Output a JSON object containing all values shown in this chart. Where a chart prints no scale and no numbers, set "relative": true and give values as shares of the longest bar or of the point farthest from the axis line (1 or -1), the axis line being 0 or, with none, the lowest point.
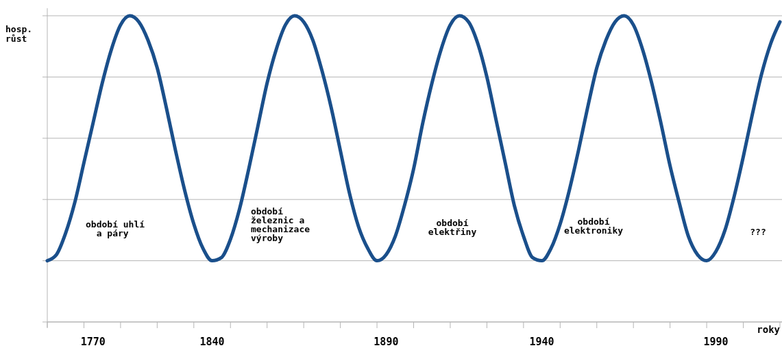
{
  "chart_data": {
    "type": "line",
    "relative": true,
    "grid": true,
    "marker": "none",
    "line_style": "solid",
    "ylabel": "hosp.\nrůst",
    "xlabel": "roky",
    "categories": [
      null,
      null,
      null,
      null,
      null,
      "1770",
      null,
      null,
      null,
      null,
      null,
      null,
      null,
      null,
      null,
      null,
      null,
      null,
      "1840",
      null,
      null,
      null,
      null,
      null,
      null,
      null,
      null,
      null,
      null,
      null,
      null,
      null,
      null,
      null,
      null,
      null,
      null,
      "1890",
      null,
      null,
      null,
      null,
      null,
      null,
      null,
      null,
      null,
      null,
      null,
      null,
      null,
      null,
      null,
      null,
      "1940",
      null,
      null,
      null,
      null,
      null,
      null,
      null,
      null,
      null,
      null,
      null,
      null,
      null,
      null,
      null,
      null,
      null,
      null,
      "1990",
      null,
      null,
      null,
      null,
      null,
      null,
      null
    ],
    "series": [
      {
        "color": "#1a4f8b",
        "values": [
          0.2,
          0.22,
          0.29,
          0.39,
          0.52,
          0.65,
          0.78,
          0.89,
          0.97,
          1.0,
          0.98,
          0.92,
          0.83,
          0.7,
          0.56,
          0.43,
          0.32,
          0.24,
          0.2,
          0.21,
          0.27,
          0.37,
          0.5,
          0.64,
          0.78,
          0.89,
          0.97,
          1.0,
          0.98,
          0.92,
          0.82,
          0.7,
          0.56,
          0.42,
          0.31,
          0.24,
          0.2,
          0.22,
          0.28,
          0.38,
          0.5,
          0.65,
          0.78,
          0.89,
          0.97,
          1.0,
          0.98,
          0.91,
          0.8,
          0.66,
          0.52,
          0.38,
          0.28,
          0.21,
          0.2,
          0.24,
          0.32,
          0.43,
          0.56,
          0.7,
          0.83,
          0.92,
          0.98,
          1.0,
          0.97,
          0.89,
          0.78,
          0.65,
          0.51,
          0.39,
          0.28,
          0.22,
          0.2,
          0.23,
          0.3,
          0.41,
          0.54,
          0.68,
          0.81,
          0.91,
          0.98
        ]
      }
    ],
    "annotations": [
      "období uhlí\n  a páry",
      "období\nželeznic a\nmechanizace\nvýroby",
      "období\nelektřiny",
      "období\nelektroniky",
      "???"
    ]
  }
}
